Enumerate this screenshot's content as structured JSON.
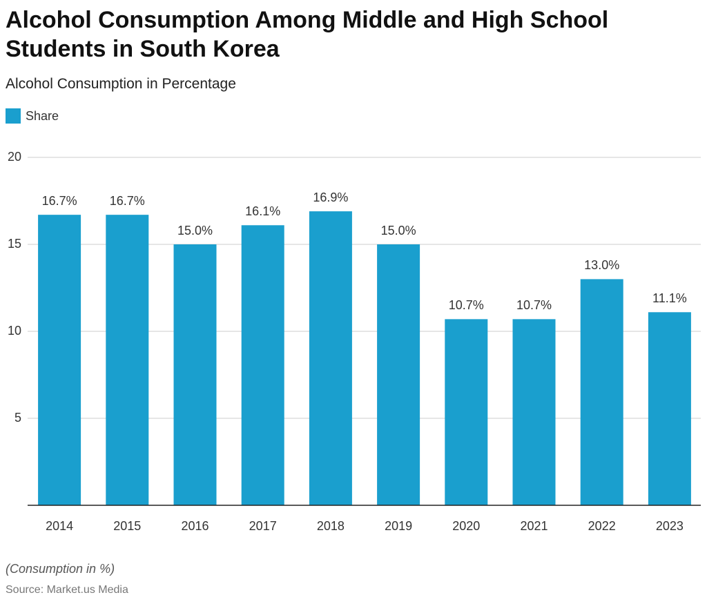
{
  "chart_data": {
    "type": "bar",
    "title": "Alcohol Consumption Among Middle and High School Students in South Korea",
    "subtitle": "Alcohol Consumption in Percentage",
    "categories": [
      "2014",
      "2015",
      "2016",
      "2017",
      "2018",
      "2019",
      "2020",
      "2021",
      "2022",
      "2023"
    ],
    "series": [
      {
        "name": "Share",
        "color": "#1a9fce",
        "values": [
          16.7,
          16.7,
          15.0,
          16.1,
          16.9,
          15.0,
          10.7,
          10.7,
          13.0,
          11.1
        ],
        "value_labels": [
          "16.7%",
          "16.7%",
          "15.0%",
          "16.1%",
          "16.9%",
          "15.0%",
          "10.7%",
          "10.7%",
          "13.0%",
          "11.1%"
        ]
      }
    ],
    "ylim": [
      0,
      20
    ],
    "yticks": [
      5,
      10,
      15,
      20
    ],
    "grid": true,
    "note": "(Consumption in %)",
    "source": "Source: Market.us Media"
  }
}
